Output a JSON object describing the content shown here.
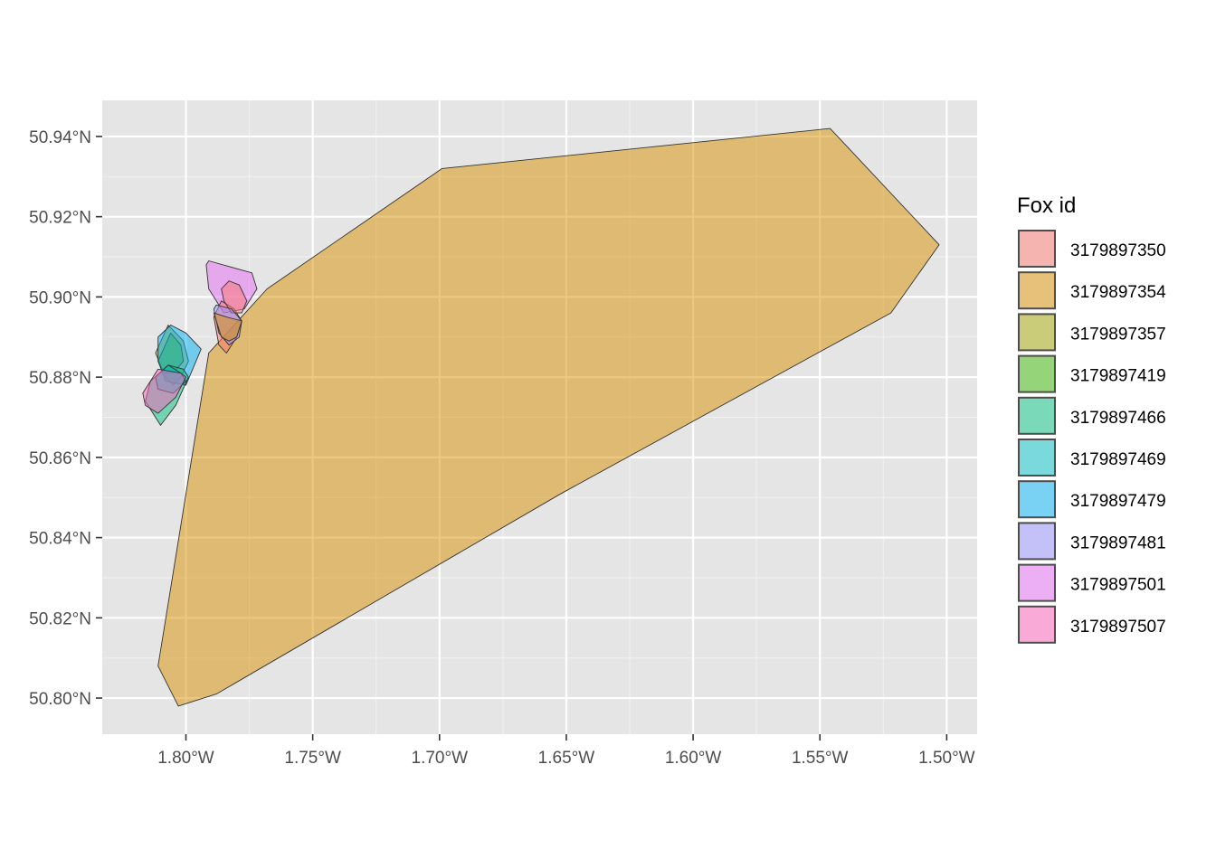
{
  "chart_data": {
    "type": "polygon_map",
    "xlim": [
      -1.833,
      -1.488
    ],
    "ylim": [
      50.791,
      50.949
    ],
    "grid": true,
    "x_ticks": [
      {
        "value": -1.8,
        "label": "1.80°W"
      },
      {
        "value": -1.75,
        "label": "1.75°W"
      },
      {
        "value": -1.7,
        "label": "1.70°W"
      },
      {
        "value": -1.65,
        "label": "1.65°W"
      },
      {
        "value": -1.6,
        "label": "1.60°W"
      },
      {
        "value": -1.55,
        "label": "1.55°W"
      },
      {
        "value": -1.5,
        "label": "1.50°W"
      }
    ],
    "y_ticks": [
      {
        "value": 50.8,
        "label": "50.80°N"
      },
      {
        "value": 50.82,
        "label": "50.82°N"
      },
      {
        "value": 50.84,
        "label": "50.84°N"
      },
      {
        "value": 50.86,
        "label": "50.86°N"
      },
      {
        "value": 50.88,
        "label": "50.88°N"
      },
      {
        "value": 50.9,
        "label": "50.90°N"
      },
      {
        "value": 50.92,
        "label": "50.92°N"
      },
      {
        "value": 50.94,
        "label": "50.94°N"
      }
    ],
    "legend": {
      "title": "Fox id",
      "position": "right",
      "items": [
        {
          "label": "3179897350",
          "color": "#F8766D"
        },
        {
          "label": "3179897354",
          "color": "#D89000"
        },
        {
          "label": "3179897357",
          "color": "#A3A500"
        },
        {
          "label": "3179897419",
          "color": "#39B600"
        },
        {
          "label": "3179897466",
          "color": "#00BF7D"
        },
        {
          "label": "3179897469",
          "color": "#00BFC4"
        },
        {
          "label": "3179897479",
          "color": "#00B0F6"
        },
        {
          "label": "3179897481",
          "color": "#9590FF"
        },
        {
          "label": "3179897501",
          "color": "#E76BF3"
        },
        {
          "label": "3179897507",
          "color": "#FF62BC"
        }
      ]
    },
    "series": [
      {
        "id": "3179897354",
        "color": "#D89000",
        "coords": [
          [
            -1.811,
            50.808
          ],
          [
            -1.803,
            50.798
          ],
          [
            -1.788,
            50.801
          ],
          [
            -1.652,
            50.851
          ],
          [
            -1.522,
            50.896
          ],
          [
            -1.503,
            50.913
          ],
          [
            -1.543,
            50.94
          ],
          [
            -1.546,
            50.942
          ],
          [
            -1.699,
            50.932
          ],
          [
            -1.768,
            50.902
          ],
          [
            -1.791,
            50.886
          ]
        ]
      },
      {
        "id": "3179897357",
        "color": "#A3A500",
        "coords": [
          [
            -1.812,
            50.886
          ],
          [
            -1.807,
            50.893
          ],
          [
            -1.801,
            50.889
          ],
          [
            -1.799,
            50.884
          ],
          [
            -1.802,
            50.88
          ],
          [
            -1.805,
            50.878
          ],
          [
            -1.808,
            50.88
          ]
        ]
      },
      {
        "id": "3179897419",
        "color": "#39B600",
        "coords": [
          [
            -1.811,
            50.884
          ],
          [
            -1.806,
            50.891
          ],
          [
            -1.802,
            50.888
          ],
          [
            -1.801,
            50.884
          ],
          [
            -1.805,
            50.881
          ],
          [
            -1.809,
            50.881
          ]
        ]
      },
      {
        "id": "3179897479",
        "color": "#00B0F6",
        "coords": [
          [
            -1.811,
            50.89
          ],
          [
            -1.806,
            50.893
          ],
          [
            -1.8,
            50.891
          ],
          [
            -1.794,
            50.887
          ],
          [
            -1.8,
            50.878
          ],
          [
            -1.808,
            50.879
          ],
          [
            -1.811,
            50.884
          ]
        ]
      },
      {
        "id": "3179897466",
        "color": "#00BF7D",
        "coords": [
          [
            -1.814,
            50.879
          ],
          [
            -1.807,
            50.883
          ],
          [
            -1.801,
            50.882
          ],
          [
            -1.799,
            50.88
          ],
          [
            -1.804,
            50.873
          ],
          [
            -1.81,
            50.868
          ],
          [
            -1.816,
            50.874
          ]
        ]
      },
      {
        "id": "3179897469",
        "color": "#00BFC4",
        "coords": [
          [
            -1.812,
            50.88
          ],
          [
            -1.807,
            50.883
          ],
          [
            -1.802,
            50.881
          ],
          [
            -1.8,
            50.879
          ],
          [
            -1.805,
            50.876
          ],
          [
            -1.811,
            50.877
          ]
        ]
      },
      {
        "id": "3179897507",
        "color": "#FF62BC",
        "coords": [
          [
            -1.817,
            50.876
          ],
          [
            -1.811,
            50.882
          ],
          [
            -1.802,
            50.881
          ],
          [
            -1.8,
            50.88
          ],
          [
            -1.804,
            50.875
          ],
          [
            -1.811,
            50.871
          ],
          [
            -1.816,
            50.873
          ]
        ]
      },
      {
        "id": "3179897501",
        "color": "#E76BF3",
        "coords": [
          [
            -1.792,
            50.908
          ],
          [
            -1.791,
            50.909
          ],
          [
            -1.774,
            50.906
          ],
          [
            -1.772,
            50.902
          ],
          [
            -1.777,
            50.897
          ],
          [
            -1.785,
            50.896
          ],
          [
            -1.791,
            50.902
          ]
        ]
      },
      {
        "id": "3179897350",
        "color": "#F8766D",
        "coords": [
          [
            -1.789,
            50.895
          ],
          [
            -1.786,
            50.899
          ],
          [
            -1.781,
            50.897
          ],
          [
            -1.778,
            50.894
          ],
          [
            -1.78,
            50.89
          ],
          [
            -1.784,
            50.886
          ],
          [
            -1.787,
            50.888
          ]
        ]
      },
      {
        "id": "3179897350b",
        "color": "#F8766D",
        "coords": [
          [
            -1.786,
            50.902
          ],
          [
            -1.783,
            50.904
          ],
          [
            -1.779,
            50.903
          ],
          [
            -1.776,
            50.899
          ],
          [
            -1.778,
            50.896
          ],
          [
            -1.782,
            50.896
          ],
          [
            -1.785,
            50.899
          ]
        ]
      },
      {
        "id": "3179897481",
        "color": "#9590FF",
        "coords": [
          [
            -1.789,
            50.897
          ],
          [
            -1.788,
            50.898
          ],
          [
            -1.782,
            50.897
          ],
          [
            -1.778,
            50.894
          ],
          [
            -1.779,
            50.89
          ],
          [
            -1.783,
            50.888
          ],
          [
            -1.787,
            50.891
          ]
        ]
      },
      {
        "id": "3179897354b",
        "color": "#D89000",
        "coords": [
          [
            -1.789,
            50.896
          ],
          [
            -1.784,
            50.895
          ],
          [
            -1.778,
            50.894
          ],
          [
            -1.78,
            50.89
          ],
          [
            -1.783,
            50.889
          ],
          [
            -1.786,
            50.89
          ]
        ]
      }
    ]
  }
}
